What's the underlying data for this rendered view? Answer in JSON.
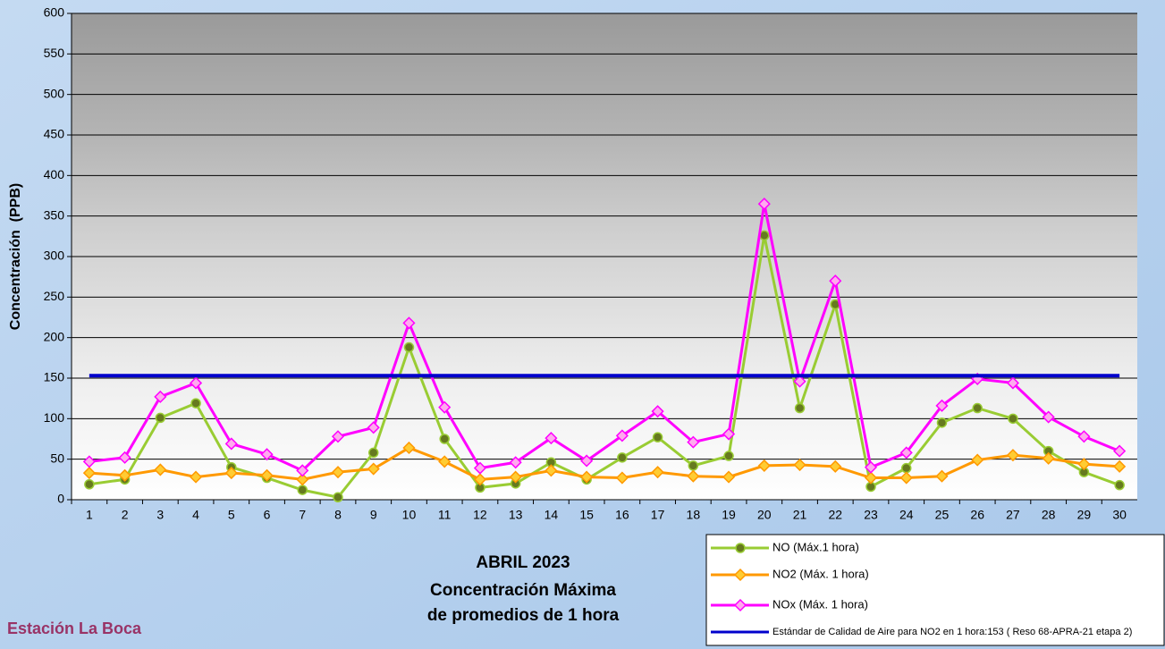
{
  "chart_data": {
    "type": "line",
    "title": "ABRIL 2023",
    "subtitle": [
      "Concentración Máxima",
      "de promedios de 1 hora"
    ],
    "station": "Estación La Boca",
    "y_label": "Concentración  (PPB)",
    "categories": [
      "1",
      "2",
      "3",
      "4",
      "5",
      "6",
      "7",
      "8",
      "9",
      "10",
      "11",
      "12",
      "13",
      "14",
      "15",
      "16",
      "17",
      "18",
      "19",
      "20",
      "21",
      "22",
      "23",
      "24",
      "25",
      "26",
      "27",
      "28",
      "29",
      "30"
    ],
    "ylim": [
      0,
      600
    ],
    "yticks": [
      0,
      50,
      100,
      150,
      200,
      250,
      300,
      350,
      400,
      450,
      500,
      550,
      600
    ],
    "grid": true,
    "series": [
      {
        "name": "NO (Máx.1 hora)",
        "color": "#99cc33",
        "marker_color": "#667a1f",
        "marker": "circle",
        "values": [
          19,
          25,
          101,
          119,
          40,
          27,
          12,
          3,
          58,
          188,
          75,
          15,
          20,
          46,
          25,
          52,
          77,
          42,
          54,
          326,
          113,
          241,
          16,
          39,
          95,
          113,
          100,
          60,
          34,
          18
        ]
      },
      {
        "name": "NO2 (Máx. 1 hora)",
        "color": "#ff9900",
        "marker_color": "#ffcc33",
        "marker": "diamond",
        "values": [
          33,
          30,
          37,
          28,
          33,
          30,
          25,
          34,
          38,
          64,
          47,
          25,
          28,
          36,
          28,
          27,
          34,
          29,
          28,
          42,
          43,
          41,
          27,
          27,
          29,
          49,
          55,
          51,
          44,
          41
        ]
      },
      {
        "name": "NOx (Máx. 1 hora)",
        "color": "#ff00ff",
        "marker_color": "#ffaaee",
        "marker": "diamond",
        "values": [
          47,
          52,
          127,
          144,
          69,
          56,
          36,
          78,
          89,
          218,
          114,
          39,
          46,
          76,
          48,
          79,
          109,
          71,
          81,
          365,
          146,
          270,
          40,
          58,
          116,
          149,
          144,
          102,
          78,
          60
        ]
      },
      {
        "name": "Estándar de Calidad de Aire para NO2 en 1 hora:153 ( Reso 68-APRA-21 etapa 2)",
        "color": "#0000cc",
        "marker": "none",
        "values": [
          153,
          153,
          153,
          153,
          153,
          153,
          153,
          153,
          153,
          153,
          153,
          153,
          153,
          153,
          153,
          153,
          153,
          153,
          153,
          153,
          153,
          153,
          153,
          153,
          153,
          153,
          153,
          153,
          153,
          153
        ]
      }
    ]
  }
}
